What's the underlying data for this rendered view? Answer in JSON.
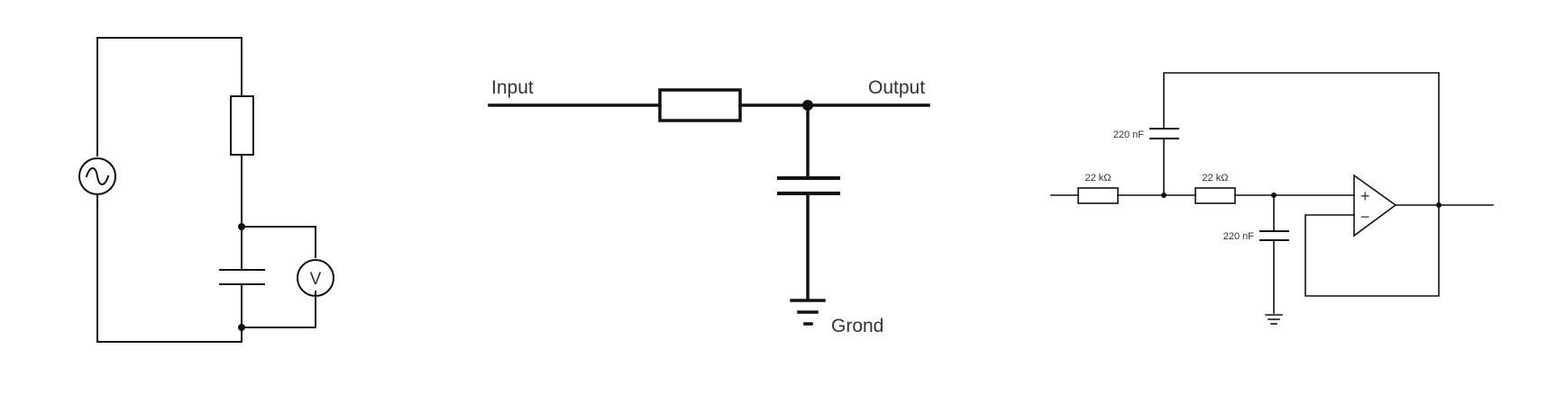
{
  "colors": {
    "line": "#111111",
    "text": "#333333",
    "background": "#ffffff"
  },
  "diagrams": [
    {
      "id": "ac-rc-circuit",
      "components": [
        "ac-source-icon",
        "resistor",
        "capacitor",
        "voltmeter"
      ],
      "voltmeter_label": "V"
    },
    {
      "id": "rc-low-pass-filter",
      "input_label": "Input",
      "output_label": "Output",
      "ground_label": "Grond"
    },
    {
      "id": "sallen-key-filter",
      "r1_label": "22 kΩ",
      "r2_label": "22 kΩ",
      "c_feedback_label": "220 nF",
      "c_ground_label": "220 nF",
      "opamp_plus": "+",
      "opamp_minus": "−"
    }
  ]
}
